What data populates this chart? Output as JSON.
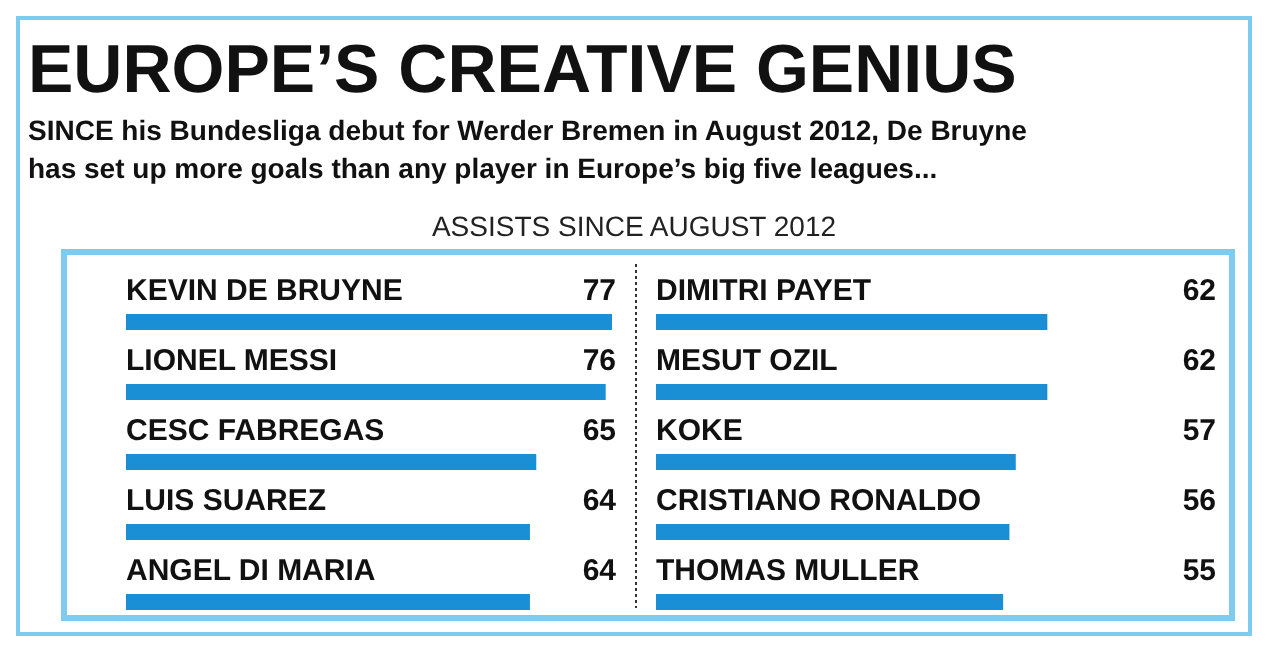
{
  "chart_data": [
    {
      "type": "bar",
      "orientation": "horizontal",
      "title": "EUROPE’S CREATIVE GENIUS",
      "subtitle": "SINCE his Bundesliga debut for Werder Bremen in August 2012, De Bruyne has set up more goals than any player in Europe’s big five leagues...",
      "xlabel": "ASSISTS SINCE AUGUST 2012",
      "categories": [
        "KEVIN DE BRUYNE",
        "LIONEL MESSI",
        "CESC FABREGAS",
        "LUIS SUAREZ",
        "ANGEL DI MARIA"
      ],
      "values": [
        77,
        76,
        65,
        64,
        64
      ],
      "color": "#1a8fd6",
      "data_labels": true
    },
    {
      "type": "bar",
      "orientation": "horizontal",
      "categories": [
        "DIMITRI PAYET",
        "MESUT OZIL",
        "KOKE",
        "CRISTIANO RONALDO",
        "THOMAS MULLER"
      ],
      "values": [
        62,
        62,
        57,
        56,
        55
      ],
      "color": "#1a8fd6",
      "data_labels": true
    }
  ]
}
